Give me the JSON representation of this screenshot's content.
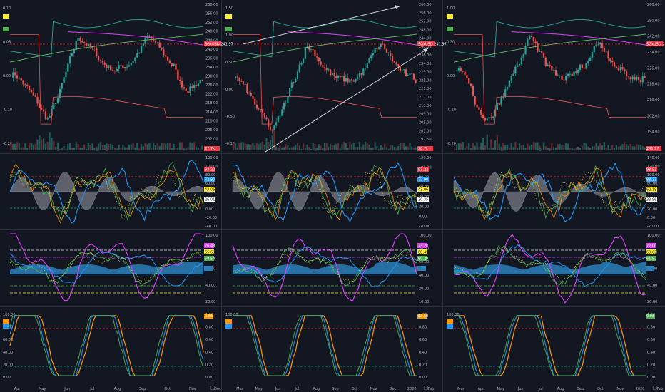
{
  "colors": {
    "background": "#131722",
    "grid": "#1e222d",
    "up": "#26a69a",
    "down": "#ef5350",
    "red_level": "#f23645",
    "green_level": "#22ab94",
    "white_level": "#e0e3eb",
    "magenta": "#e040fb",
    "blue": "#2196f3",
    "orange": "#ff9800",
    "yellow": "#ffeb3b",
    "green": "#4caf50",
    "teal_fill": "#2a7fb8",
    "gray_fill": "#9598a1"
  },
  "columns": [
    {
      "id": "left",
      "price_axis": [
        "260.00",
        "256.00",
        "252.00",
        "248.00",
        "244.00",
        "240.00",
        "236.00",
        "234.00",
        "230.00",
        "226.00",
        "222.00",
        "218.00",
        "214.00",
        "210.00",
        "206.00",
        "202.00",
        "198.00"
      ],
      "left_axis": [
        "0.10",
        "0.05",
        "0.00",
        "-0.10",
        "-0.20"
      ],
      "price_tag": "SGxUSD 241.97",
      "price_tag_bottom": "27.7k",
      "osc1_axis": [
        "120.00",
        "100.00",
        "80.00",
        "60.00",
        "40.00",
        "20.00",
        "0.00",
        "-20.00",
        "-40.00"
      ],
      "osc1_tags": [
        "93.22",
        "72.90",
        "43.06",
        "26.01"
      ],
      "osc2_axis": [
        "100.00",
        "80.00",
        "60.00",
        "40.00",
        "20.00"
      ],
      "osc2_tags": [
        "76.48",
        "65.68",
        "58.54"
      ],
      "osc3_axis": [
        "100.00",
        "80.00",
        "60.00",
        "40.00",
        "20.00",
        "0.00"
      ],
      "osc3_right_axis": [
        "1.00",
        "0.80",
        "0.60",
        "0.40",
        "0.20",
        "0.00"
      ],
      "osc3_tag": "0.86",
      "time_axis": [
        "Apr",
        "May",
        "Jun",
        "Jul",
        "Aug",
        "Sep",
        "Oct",
        "Nov",
        "Dec"
      ]
    },
    {
      "id": "middle",
      "price_axis": [
        "260.00",
        "256.00",
        "252.00",
        "248.00",
        "244.00",
        "240.00",
        "236.00",
        "234.00",
        "229.00",
        "225.00",
        "221.00",
        "217.00",
        "213.00",
        "209.00",
        "205.00",
        "201.00",
        "197.50",
        "194.00"
      ],
      "left_axis": [
        "1.50",
        "1.00",
        "0.50",
        "0.00",
        "-0.50",
        "-0.10"
      ],
      "price_tag": "SGxUSD 241.97",
      "price_tag_bottom": "28.7k",
      "osc1_axis": [
        "120.00",
        "100.00",
        "80.00",
        "60.00",
        "40.00",
        "20.00",
        "0.00",
        "-20.00"
      ],
      "osc1_tags": [
        "93.22",
        "72.90",
        "43.06",
        "30.35"
      ],
      "osc2_axis": [
        "100.00",
        "80.00",
        "60.00",
        "40.00",
        "20.00",
        "10.00"
      ],
      "osc2_tags": [
        "73.20",
        "68.45",
        "60.29"
      ],
      "osc3_axis": [
        "100.00",
        "80.00",
        "60.00",
        "40.00",
        "20.00",
        "0.00"
      ],
      "osc3_right_axis": [
        "1.00",
        "0.80",
        "0.60",
        "0.40",
        "0.20",
        "0.00"
      ],
      "osc3_tag": "88.50",
      "time_axis": [
        "Mar",
        "May",
        "Jun",
        "Jul",
        "Aug",
        "Sep",
        "Oct",
        "Nov",
        "Dec",
        "2020",
        "Feb"
      ]
    },
    {
      "id": "right",
      "price_axis": [
        "260.00",
        "250.00",
        "242.00",
        "234.00",
        "226.00",
        "218.00",
        "210.00",
        "202.00",
        "194.00",
        "186.00"
      ],
      "left_axis": [
        "1.00",
        "0.20",
        "0.00",
        "-0.10",
        "-0.20"
      ],
      "price_tag": "SGxUSD 241.97",
      "price_tag_bottom": "241.97",
      "osc1_axis": [
        "140.00",
        "120.00",
        "100.00",
        "80.00",
        "60.00",
        "40.00",
        "20.00",
        "0.00",
        "-20.00"
      ],
      "osc1_tags": [
        "98.53",
        "88.33",
        "62.19",
        "33.96"
      ],
      "osc2_axis": [
        "100.00",
        "80.00",
        "60.00",
        "40.00",
        "20.00"
      ],
      "osc2_tags": [
        "77.00",
        "68.02",
        "61.87"
      ],
      "osc3_axis": [
        "100.00",
        "80.00",
        "60.00",
        "40.00",
        "20.00",
        "0.00"
      ],
      "osc3_right_axis": [
        "1.00",
        "0.80",
        "0.60",
        "0.40",
        "0.20",
        "0.00"
      ],
      "osc3_tag": "0.98",
      "time_axis": [
        "Mar",
        "Apr",
        "May",
        "Jun",
        "Jul",
        "Aug",
        "Sep",
        "Oct",
        "Nov",
        "2020",
        "Feb"
      ]
    }
  ]
}
